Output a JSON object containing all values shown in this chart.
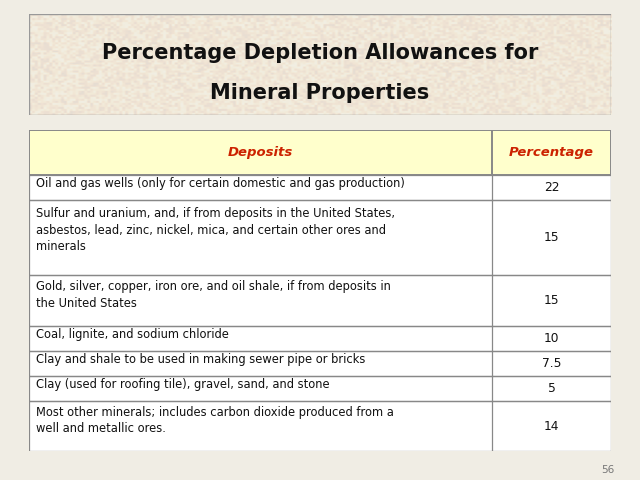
{
  "title_line1": "Percentage Depletion Allowances for",
  "title_line2": "Mineral Properties",
  "title_bg_color": "#e8dfc8",
  "title_text_color": "#111111",
  "header": [
    "Deposits",
    "Percentage"
  ],
  "header_bg_color": "#ffffcc",
  "header_text_color": "#cc2200",
  "rows": [
    [
      "Oil and gas wells (only for certain domestic and gas production)",
      "22"
    ],
    [
      "Sulfur and uranium, and, if from deposits in the United States,\nasbestos, lead, zinc, nickel, mica, and certain other ores and\nminerals",
      "15"
    ],
    [
      "Gold, silver, copper, iron ore, and oil shale, if from deposits in\nthe United States",
      "15"
    ],
    [
      "Coal, lignite, and sodium chloride",
      "10"
    ],
    [
      "Clay and shale to be used in making sewer pipe or bricks",
      "7.5"
    ],
    [
      "Clay (used for roofing tile), gravel, sand, and stone",
      "5"
    ],
    [
      "Most other minerals; includes carbon dioxide produced from a\nwell and metallic ores.",
      "14"
    ]
  ],
  "row_bg_color": "#ffffff",
  "row_text_color": "#111111",
  "border_color": "#888888",
  "page_bg_color": "#f0ede4",
  "page_number": "56",
  "col_split": 0.795,
  "figsize": [
    6.4,
    4.8
  ],
  "dpi": 100,
  "title_fontsize": 15,
  "header_fontsize": 9.5,
  "row_fontsize": 8.3
}
